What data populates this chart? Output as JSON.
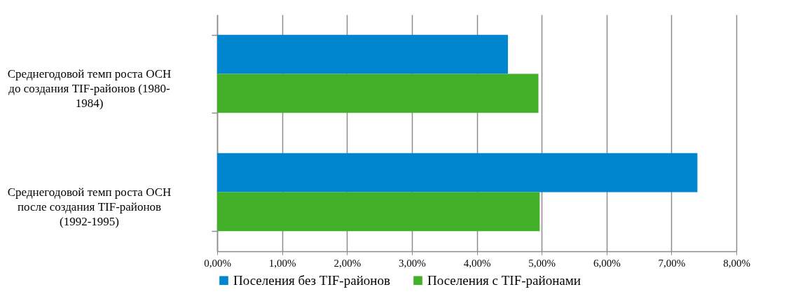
{
  "chart_data": {
    "type": "bar",
    "orientation": "horizontal",
    "categories": [
      "Среднегодовой темп роста ОСН до создания TIF-районов (1980-1984)",
      "Среднегодовой темп роста ОСН после создания TIF-районов (1992-1995)"
    ],
    "series": [
      {
        "name": "Поселения без TIF-районов",
        "color": "#0086cf",
        "values": [
          4.48,
          7.4
        ]
      },
      {
        "name": "Поселения с TIF-районами",
        "color": "#43b02a",
        "values": [
          4.95,
          4.97
        ]
      }
    ],
    "xlim": [
      0,
      8
    ],
    "xticks": [
      {
        "value": 0,
        "label": "0,00%"
      },
      {
        "value": 1,
        "label": "1,00%"
      },
      {
        "value": 2,
        "label": "2,00%"
      },
      {
        "value": 3,
        "label": "3,00%"
      },
      {
        "value": 4,
        "label": "4,00%"
      },
      {
        "value": 5,
        "label": "5,00%"
      },
      {
        "value": 6,
        "label": "6,00%"
      },
      {
        "value": 7,
        "label": "7,00%"
      },
      {
        "value": 8,
        "label": "8,00%"
      }
    ],
    "grid": "x",
    "legend": "bottom"
  }
}
